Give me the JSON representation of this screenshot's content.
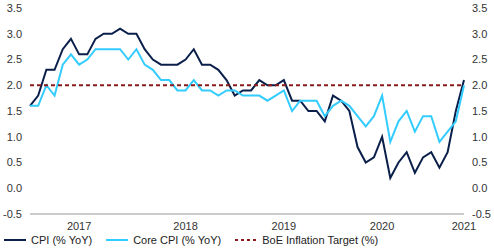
{
  "chart_data": {
    "type": "line",
    "categories": [
      null,
      null,
      null,
      null,
      null,
      null,
      "2017",
      null,
      null,
      null,
      null,
      null,
      null,
      null,
      null,
      null,
      null,
      null,
      null,
      "2018",
      null,
      null,
      null,
      null,
      null,
      null,
      null,
      null,
      null,
      null,
      null,
      "2019",
      null,
      null,
      null,
      null,
      null,
      null,
      null,
      null,
      null,
      null,
      null,
      "2020",
      null,
      null,
      null,
      null,
      null,
      null,
      null,
      null,
      null,
      "2021"
    ],
    "series": [
      {
        "name": "CPI (% YoY)",
        "color": "#0b1f4b",
        "line_style": "solid",
        "values": [
          1.6,
          1.8,
          2.3,
          2.3,
          2.7,
          2.9,
          2.6,
          2.6,
          2.9,
          3.0,
          3.0,
          3.1,
          3.0,
          3.0,
          2.7,
          2.5,
          2.4,
          2.4,
          2.4,
          2.5,
          2.7,
          2.4,
          2.4,
          2.3,
          2.1,
          1.8,
          1.9,
          1.9,
          2.1,
          2.0,
          2.0,
          2.1,
          1.7,
          1.7,
          1.5,
          1.5,
          1.3,
          1.8,
          1.7,
          1.5,
          0.8,
          0.5,
          0.6,
          1.0,
          0.2,
          0.5,
          0.7,
          0.3,
          0.6,
          0.7,
          0.4,
          0.7,
          1.5,
          2.1
        ]
      },
      {
        "name": "Core CPI (% YoY)",
        "color": "#33ccff",
        "line_style": "solid",
        "values": [
          1.6,
          1.6,
          2.0,
          1.8,
          2.4,
          2.6,
          2.4,
          2.5,
          2.7,
          2.7,
          2.7,
          2.7,
          2.5,
          2.7,
          2.4,
          2.3,
          2.1,
          2.1,
          1.9,
          1.9,
          2.1,
          1.9,
          1.9,
          1.8,
          1.9,
          1.9,
          1.8,
          1.8,
          1.8,
          1.7,
          1.8,
          1.9,
          1.5,
          1.7,
          1.7,
          1.7,
          1.4,
          1.6,
          1.7,
          1.6,
          1.4,
          1.2,
          1.4,
          1.8,
          0.9,
          1.3,
          1.5,
          1.1,
          1.4,
          1.4,
          0.9,
          1.1,
          1.3,
          2.0
        ]
      },
      {
        "name": "BoE Inflation Target (%)",
        "color": "#8b1a1a",
        "line_style": "dashed",
        "values": [
          2,
          2,
          2,
          2,
          2,
          2,
          2,
          2,
          2,
          2,
          2,
          2,
          2,
          2,
          2,
          2,
          2,
          2,
          2,
          2,
          2,
          2,
          2,
          2,
          2,
          2,
          2,
          2,
          2,
          2,
          2,
          2,
          2,
          2,
          2,
          2,
          2,
          2,
          2,
          2,
          2,
          2,
          2,
          2,
          2,
          2,
          2,
          2,
          2,
          2,
          2,
          2,
          2,
          2
        ]
      }
    ],
    "ylim": [
      -0.5,
      3.5
    ],
    "yticks": [
      -0.5,
      {
        "value": 0,
        "label": "0.0"
      },
      0.5,
      {
        "value": 1,
        "label": "1.0"
      },
      1.5,
      {
        "value": 2,
        "label": "2.0"
      },
      2.5,
      {
        "value": 3,
        "label": "3.0"
      },
      3.5
    ],
    "y2lim": [
      -0.5,
      3.5
    ],
    "y2ticks": [
      -0.5,
      {
        "value": 0,
        "label": "0.0"
      },
      0.5,
      {
        "value": 1,
        "label": "1.0"
      },
      1.5,
      {
        "value": 2,
        "label": "2.0"
      },
      2.5,
      {
        "value": 3,
        "label": "3.0"
      },
      3.5
    ],
    "grid": false,
    "legend": "bottom-left"
  }
}
